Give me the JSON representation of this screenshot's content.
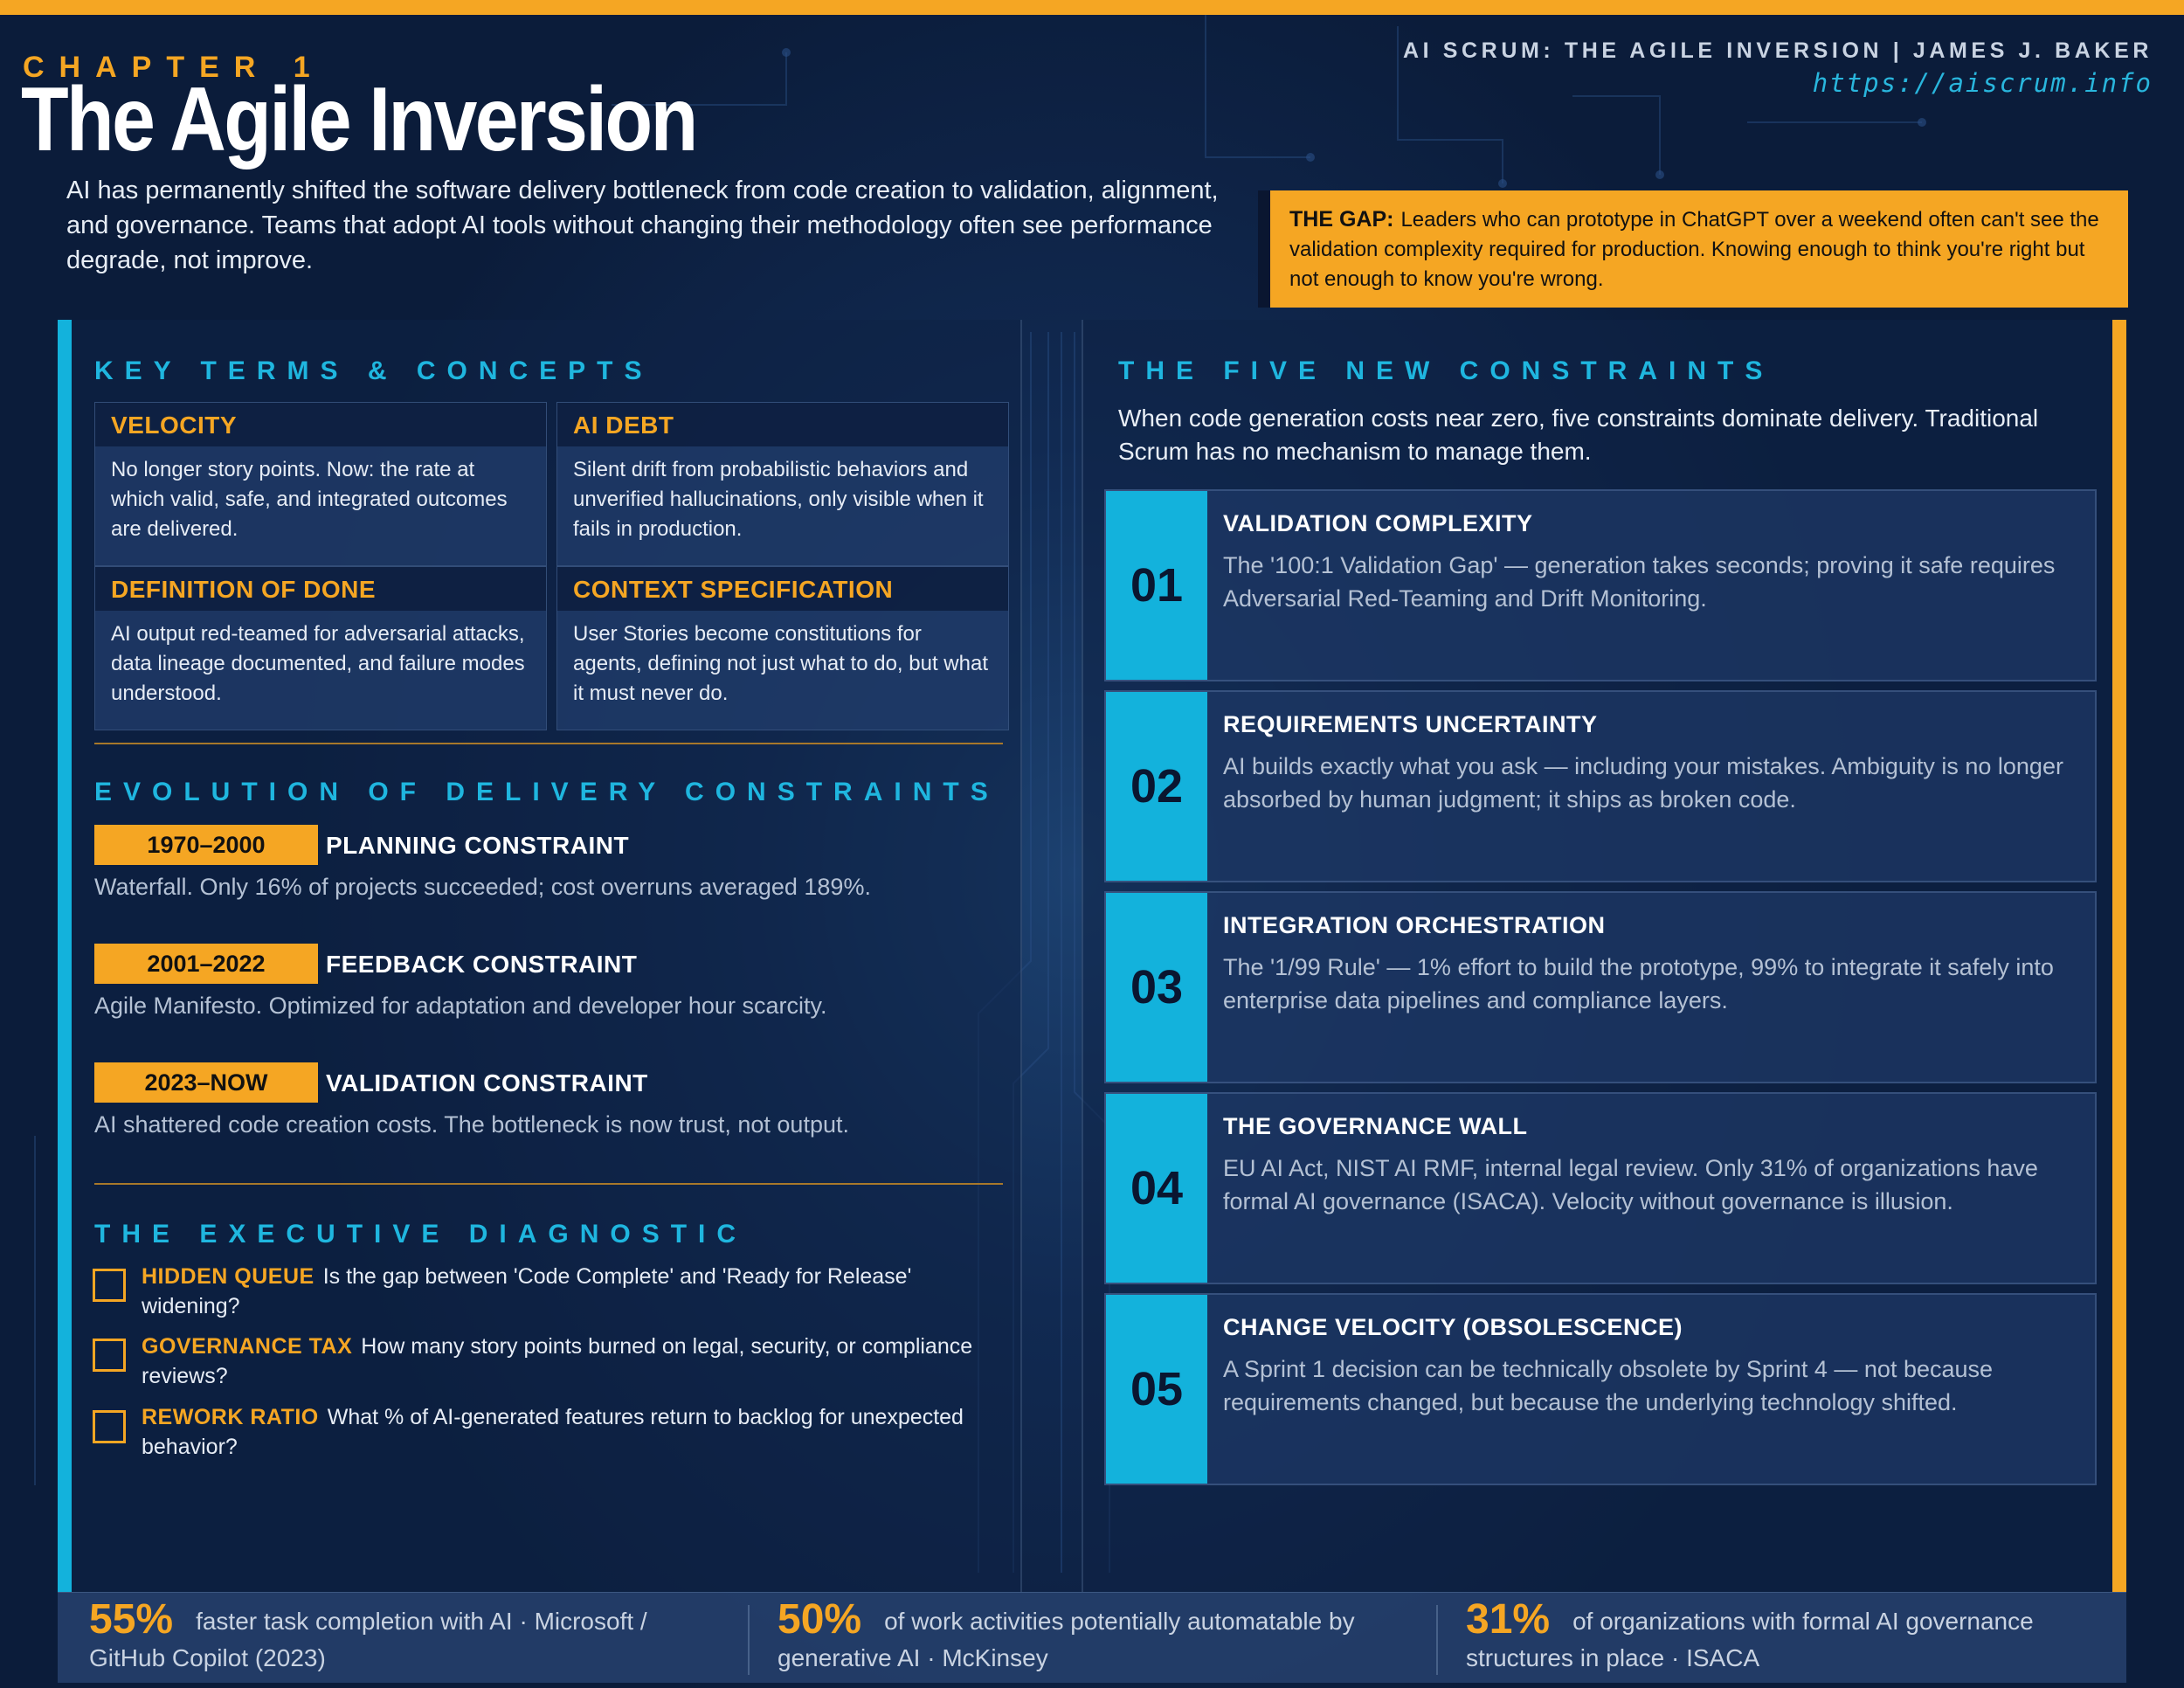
{
  "header": {
    "chapter_label": "CHAPTER 1",
    "title": "The Agile Inversion",
    "book_credit": "AI SCRUM: THE AGILE INVERSION  |  JAMES J. BAKER",
    "url": "https://aiscrum.info",
    "intro": "AI has permanently shifted the software delivery bottleneck from code creation to validation, alignment, and governance. Teams that adopt AI tools without changing their methodology often see performance degrade, not improve."
  },
  "gap": {
    "label": "THE GAP:",
    "text": "Leaders who can prototype in ChatGPT over a weekend often can't see the validation complexity required for production. Knowing enough to think you're right but not enough to know you're wrong."
  },
  "key_terms": {
    "heading": "KEY TERMS & CONCEPTS",
    "items": [
      {
        "name": "VELOCITY",
        "desc": "No longer story points. Now: the rate at which valid, safe, and integrated outcomes are delivered."
      },
      {
        "name": "AI DEBT",
        "desc": "Silent drift from probabilistic behaviors and unverified hallucinations, only visible when it fails in production."
      },
      {
        "name": "DEFINITION OF DONE",
        "desc": "AI output red-teamed for adversarial attacks, data lineage documented, and failure modes understood."
      },
      {
        "name": "CONTEXT SPECIFICATION",
        "desc": "User Stories become constitutions for agents, defining not just what to do, but what it must never do."
      }
    ]
  },
  "evolution": {
    "heading": "EVOLUTION OF DELIVERY CONSTRAINTS",
    "eras": [
      {
        "years": "1970–2000",
        "title": "PLANNING CONSTRAINT",
        "desc": "Waterfall. Only 16% of projects succeeded; cost overruns averaged 189%."
      },
      {
        "years": "2001–2022",
        "title": "FEEDBACK CONSTRAINT",
        "desc": "Agile Manifesto. Optimized for adaptation and developer hour scarcity."
      },
      {
        "years": "2023–NOW",
        "title": "VALIDATION CONSTRAINT",
        "desc": "AI shattered code creation costs. The bottleneck is now trust, not output."
      }
    ]
  },
  "diagnostic": {
    "heading": "THE EXECUTIVE DIAGNOSTIC",
    "items": [
      {
        "label": "HIDDEN QUEUE",
        "question": "Is the gap between 'Code Complete' and 'Ready for Release' widening?"
      },
      {
        "label": "GOVERNANCE TAX",
        "question": "How many story points burned on legal, security, or compliance reviews?"
      },
      {
        "label": "REWORK RATIO",
        "question": "What % of AI-generated features return to backlog for unexpected behavior?"
      }
    ]
  },
  "five_constraints": {
    "heading": "THE FIVE NEW CONSTRAINTS",
    "intro": "When code generation costs near zero, five constraints dominate delivery. Traditional Scrum has no mechanism to manage them.",
    "items": [
      {
        "num": "01",
        "title": "VALIDATION COMPLEXITY",
        "desc": "The '100:1 Validation Gap' — generation takes seconds; proving it safe requires Adversarial Red-Teaming and Drift Monitoring."
      },
      {
        "num": "02",
        "title": "REQUIREMENTS UNCERTAINTY",
        "desc": "AI builds exactly what you ask — including your mistakes. Ambiguity is no longer absorbed by human judgment; it ships as broken code."
      },
      {
        "num": "03",
        "title": "INTEGRATION ORCHESTRATION",
        "desc": "The '1/99 Rule' — 1% effort to build the prototype, 99% to integrate it safely into enterprise data pipelines and compliance layers."
      },
      {
        "num": "04",
        "title": "THE GOVERNANCE WALL",
        "desc": "EU AI Act, NIST AI RMF, internal legal review. Only 31% of organizations have formal AI governance (ISACA). Velocity without governance is illusion."
      },
      {
        "num": "05",
        "title": "CHANGE VELOCITY (OBSOLESCENCE)",
        "desc": "A Sprint 1 decision can be technically obsolete by Sprint 4 — not because requirements changed, but because the underlying technology shifted."
      }
    ]
  },
  "stats": [
    {
      "value": "55%",
      "text": "faster task completion with AI  ·  Microsoft / GitHub Copilot (2023)"
    },
    {
      "value": "50%",
      "text": "of work activities potentially automatable by generative AI  ·  McKinsey"
    },
    {
      "value": "31%",
      "text": "of organizations with formal AI governance structures in place  ·  ISACA"
    }
  ],
  "colors": {
    "accent_orange": "#f5a623",
    "accent_cyan": "#13b2dc",
    "background_navy": "#0d2247"
  }
}
